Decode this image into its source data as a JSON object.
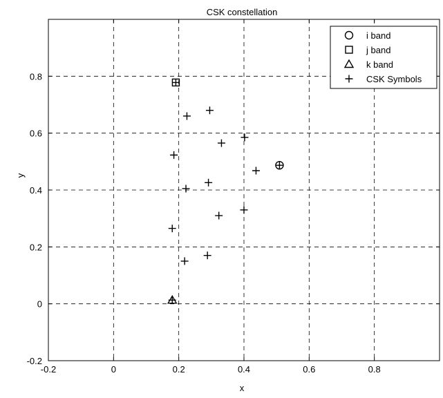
{
  "chart_data": {
    "type": "scatter",
    "title": "CSK constellation",
    "xlabel": "x",
    "ylabel": "y",
    "xlim": [
      -0.2,
      1.0
    ],
    "ylim": [
      -0.2,
      1.0
    ],
    "xticks": [
      -0.2,
      0,
      0.2,
      0.4,
      0.6,
      0.8
    ],
    "yticks": [
      -0.2,
      0,
      0.2,
      0.4,
      0.6,
      0.8
    ],
    "xtick_labels": [
      "-0.2",
      "0",
      "0.2",
      "0.4",
      "0.6",
      "0.8"
    ],
    "ytick_labels": [
      "-0.2",
      "0",
      "0.2",
      "0.4",
      "0.6",
      "0.8"
    ],
    "grid": true,
    "grid_style": "dashed",
    "legend_position": "top-right",
    "series": [
      {
        "name": "i band",
        "marker": "circle",
        "points": [
          [
            0.509,
            0.487
          ]
        ]
      },
      {
        "name": "j band",
        "marker": "square",
        "points": [
          [
            0.191,
            0.778
          ]
        ]
      },
      {
        "name": "k band",
        "marker": "triangle",
        "points": [
          [
            0.18,
            0.013
          ]
        ]
      },
      {
        "name": "CSK Symbols",
        "marker": "plus",
        "points": [
          [
            0.191,
            0.778
          ],
          [
            0.295,
            0.68
          ],
          [
            0.225,
            0.66
          ],
          [
            0.402,
            0.585
          ],
          [
            0.331,
            0.565
          ],
          [
            0.185,
            0.523
          ],
          [
            0.509,
            0.487
          ],
          [
            0.437,
            0.468
          ],
          [
            0.291,
            0.426
          ],
          [
            0.222,
            0.405
          ],
          [
            0.4,
            0.33
          ],
          [
            0.323,
            0.31
          ],
          [
            0.18,
            0.265
          ],
          [
            0.288,
            0.17
          ],
          [
            0.218,
            0.15
          ],
          [
            0.18,
            0.013
          ]
        ]
      }
    ]
  }
}
